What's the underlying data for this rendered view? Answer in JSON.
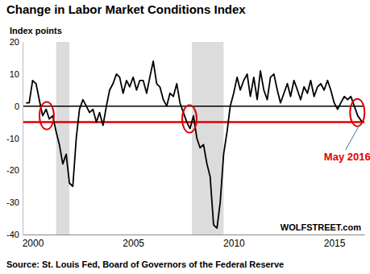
{
  "chart_data": {
    "type": "line",
    "title": "Change in Labor Market Conditions Index",
    "ylabel": "Index points",
    "source": "Source: St. Louis Fed, Board of Governors of the Federal Reserve",
    "watermark": "WOLFSTREET.com",
    "color": "#000000",
    "grid": false,
    "xlim": [
      1999.5,
      2016.5
    ],
    "xticks": [
      2000,
      2005,
      2010,
      2015
    ],
    "ylim": [
      -40,
      20
    ],
    "yticks": [
      -40,
      -30,
      -20,
      -10,
      0,
      10,
      20
    ],
    "recessions": [
      [
        2001.17,
        2001.83
      ],
      [
        2007.92,
        2009.5
      ]
    ],
    "reference_lines": [
      {
        "y": 0,
        "color": "#000000"
      },
      {
        "y": -5,
        "color": "#e00000"
      }
    ],
    "highlights": [
      {
        "x": 2000.7,
        "y": -3
      },
      {
        "x": 2007.8,
        "y": -4
      },
      {
        "x": 2016.15,
        "y": -2
      }
    ],
    "annotations": [
      {
        "text": "May 2016",
        "x": 2016.37,
        "y": -4.8,
        "color": "#e00000"
      }
    ],
    "x": [
      1999.67,
      1999.83,
      2000.0,
      2000.17,
      2000.33,
      2000.5,
      2000.67,
      2000.83,
      2001.0,
      2001.17,
      2001.33,
      2001.5,
      2001.67,
      2001.83,
      2002.0,
      2002.17,
      2002.33,
      2002.5,
      2002.67,
      2002.83,
      2003.0,
      2003.17,
      2003.33,
      2003.5,
      2003.67,
      2003.83,
      2004.0,
      2004.17,
      2004.33,
      2004.5,
      2004.67,
      2004.83,
      2005.0,
      2005.17,
      2005.33,
      2005.5,
      2005.67,
      2005.83,
      2006.0,
      2006.17,
      2006.33,
      2006.5,
      2006.67,
      2006.83,
      2007.0,
      2007.17,
      2007.33,
      2007.5,
      2007.67,
      2007.83,
      2008.0,
      2008.17,
      2008.33,
      2008.5,
      2008.67,
      2008.83,
      2009.0,
      2009.17,
      2009.33,
      2009.5,
      2009.67,
      2009.83,
      2010.0,
      2010.17,
      2010.33,
      2010.5,
      2010.67,
      2010.83,
      2011.0,
      2011.17,
      2011.33,
      2011.5,
      2011.67,
      2011.83,
      2012.0,
      2012.17,
      2012.33,
      2012.5,
      2012.67,
      2012.83,
      2013.0,
      2013.17,
      2013.33,
      2013.5,
      2013.67,
      2013.83,
      2014.0,
      2014.17,
      2014.33,
      2014.5,
      2014.67,
      2014.83,
      2015.0,
      2015.17,
      2015.33,
      2015.5,
      2015.67,
      2015.83,
      2016.0,
      2016.17,
      2016.37
    ],
    "values": [
      1,
      1,
      8,
      7,
      2,
      -3,
      -1,
      -4,
      -3,
      -8,
      -12,
      -18,
      -15,
      -24,
      -25,
      -10,
      -1,
      2,
      0,
      -2,
      -1,
      -5,
      -2,
      -6,
      0,
      5,
      7,
      10,
      9,
      4,
      8,
      6,
      9,
      5,
      8,
      8,
      4,
      9,
      14,
      7,
      6,
      2,
      0,
      4,
      3,
      7,
      1,
      -2,
      -5,
      -7,
      -3,
      -10,
      -13,
      -12,
      -18,
      -22,
      -37,
      -38,
      -30,
      -15,
      -8,
      0,
      4,
      9,
      5,
      8,
      10,
      3,
      9,
      2,
      11,
      5,
      2,
      9,
      10,
      5,
      1,
      4,
      7,
      3,
      8,
      5,
      2,
      6,
      4,
      8,
      3,
      6,
      7,
      5,
      8,
      5,
      1,
      -1,
      1,
      3,
      2,
      3,
      0,
      -3,
      -4.8
    ]
  }
}
